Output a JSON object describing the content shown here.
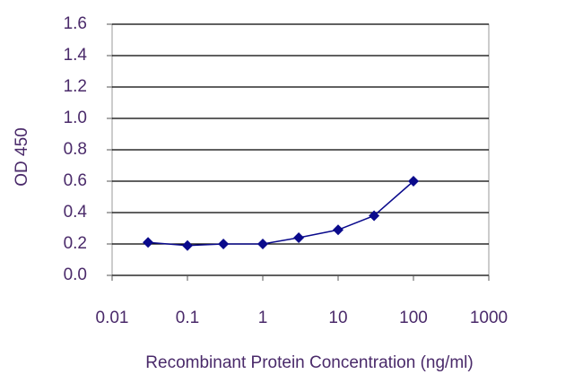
{
  "chart_data": {
    "type": "line",
    "xlabel": "Recombinant Protein Concentration (ng/ml)",
    "ylabel": "OD 450",
    "xscale": "log",
    "x": [
      0.03,
      0.1,
      0.3,
      1,
      3,
      10,
      30,
      100
    ],
    "series": [
      {
        "color": "#0a0a8c",
        "values": [
          0.21,
          0.19,
          0.2,
          0.2,
          0.24,
          0.29,
          0.38,
          0.6
        ]
      }
    ],
    "xlim": [
      0.01,
      1000
    ],
    "xticks": [
      0.01,
      0.1,
      1,
      10,
      100,
      1000
    ],
    "ylim": [
      0,
      1.6
    ],
    "yticks": [
      {
        "value": 0,
        "label": "0.0"
      },
      0.2,
      0.4,
      0.6,
      0.8,
      {
        "value": 1,
        "label": "1.0"
      },
      1.2,
      1.4,
      1.6
    ],
    "grid": true
  }
}
